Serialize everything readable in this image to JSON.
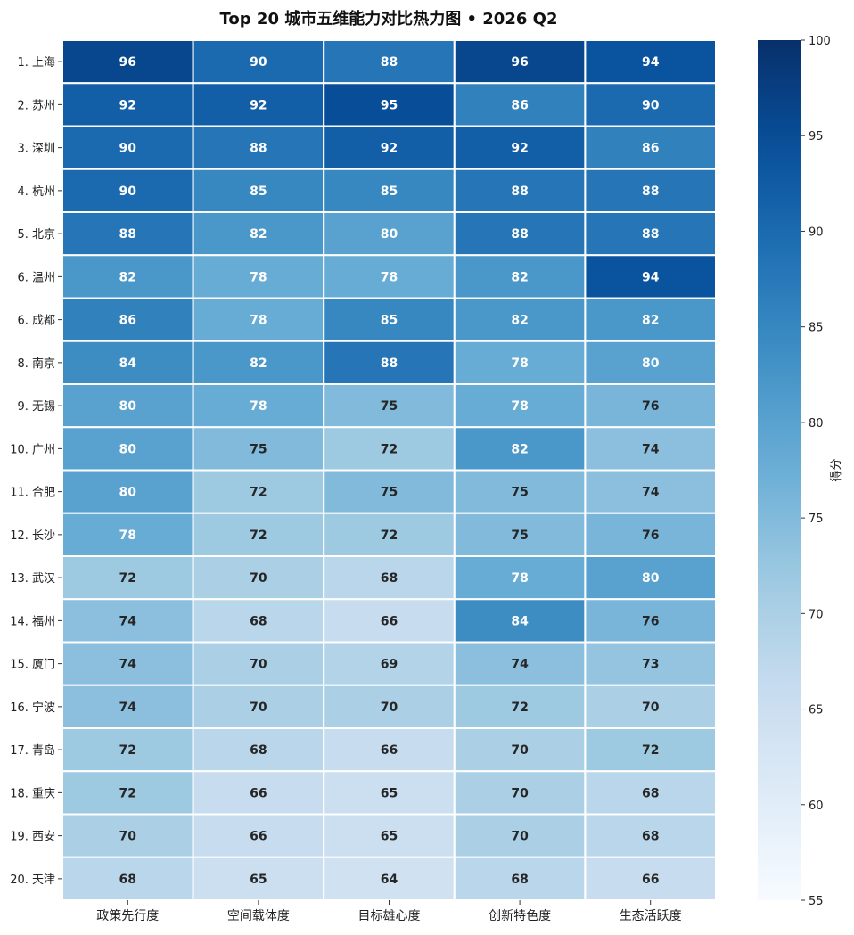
{
  "chart_data": {
    "type": "heatmap",
    "title": "Top 20 城市五维能力对比热力图 • 2026 Q2",
    "columns": [
      "政策先行度",
      "空间载体度",
      "目标雄心度",
      "创新特色度",
      "生态活跃度"
    ],
    "rows": [
      "1. 上海",
      "2. 苏州",
      "3. 深圳",
      "4. 杭州",
      "5. 北京",
      "6. 温州",
      "6. 成都",
      "8. 南京",
      "9. 无锡",
      "10. 广州",
      "11. 合肥",
      "12. 长沙",
      "13. 武汉",
      "14. 福州",
      "15. 厦门",
      "16. 宁波",
      "17. 青岛",
      "18. 重庆",
      "19. 西安",
      "20. 天津"
    ],
    "values": [
      [
        96,
        90,
        88,
        96,
        94
      ],
      [
        92,
        92,
        95,
        86,
        90
      ],
      [
        90,
        88,
        92,
        92,
        86
      ],
      [
        90,
        85,
        85,
        88,
        88
      ],
      [
        88,
        82,
        80,
        88,
        88
      ],
      [
        82,
        78,
        78,
        82,
        94
      ],
      [
        86,
        78,
        85,
        82,
        82
      ],
      [
        84,
        82,
        88,
        78,
        80
      ],
      [
        80,
        78,
        75,
        78,
        76
      ],
      [
        80,
        75,
        72,
        82,
        74
      ],
      [
        80,
        72,
        75,
        75,
        74
      ],
      [
        78,
        72,
        72,
        75,
        76
      ],
      [
        72,
        70,
        68,
        78,
        80
      ],
      [
        74,
        68,
        66,
        84,
        76
      ],
      [
        74,
        70,
        69,
        74,
        73
      ],
      [
        74,
        70,
        70,
        72,
        70
      ],
      [
        72,
        68,
        66,
        70,
        72
      ],
      [
        72,
        66,
        65,
        70,
        68
      ],
      [
        70,
        66,
        65,
        70,
        68
      ],
      [
        68,
        65,
        64,
        68,
        66
      ]
    ],
    "colorbar": {
      "label": "得分",
      "min": 55,
      "max": 100,
      "ticks": [
        55,
        60,
        65,
        70,
        75,
        80,
        85,
        90,
        95,
        100
      ]
    },
    "colormap": "Blues"
  }
}
